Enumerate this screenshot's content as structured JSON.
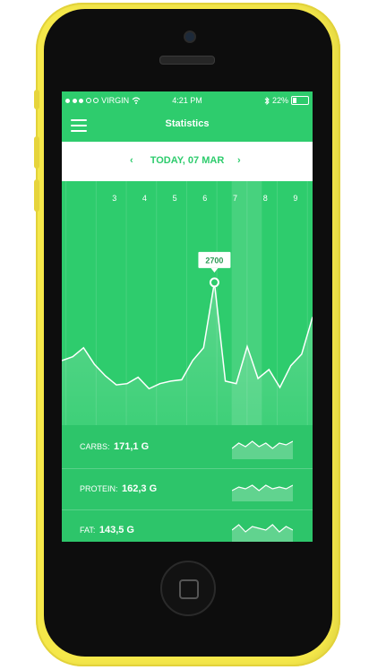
{
  "status_bar": {
    "carrier": "VIRGIN",
    "time": "4:21 PM",
    "battery": "22%"
  },
  "header": {
    "title": "Statistics",
    "menu_icon": "hamburger-icon"
  },
  "date_nav": {
    "prev": "‹",
    "date": "TODAY, 07 MAR",
    "next": "›"
  },
  "chart_data": {
    "type": "area",
    "x_labels": [
      "3",
      "4",
      "5",
      "6",
      "7",
      "8",
      "9"
    ],
    "selected_label": "7",
    "tooltip": "2700",
    "values": [
      1990,
      2020,
      2090,
      1960,
      1870,
      1800,
      1810,
      1860,
      1770,
      1810,
      1830,
      1840,
      1990,
      2090,
      2600,
      1830,
      1810,
      2100,
      1850,
      1920,
      1780,
      1950,
      2040,
      2330
    ]
  },
  "macros": [
    {
      "label": "CARBS:",
      "value": "171,1 G",
      "trend": [
        3,
        6,
        4,
        7,
        4,
        6,
        3,
        6,
        5,
        7
      ]
    },
    {
      "label": "PROTEIN:",
      "value": "162,3 G",
      "trend": [
        3,
        5,
        4,
        6,
        3,
        6,
        4,
        5,
        4,
        6
      ]
    },
    {
      "label": "FAT:",
      "value": "143,5 G",
      "trend": [
        4,
        7,
        3,
        6,
        5,
        4,
        7,
        3,
        6,
        4
      ]
    }
  ],
  "colors": {
    "accent": "#2ecc6d",
    "frame": "#f5e84a"
  }
}
